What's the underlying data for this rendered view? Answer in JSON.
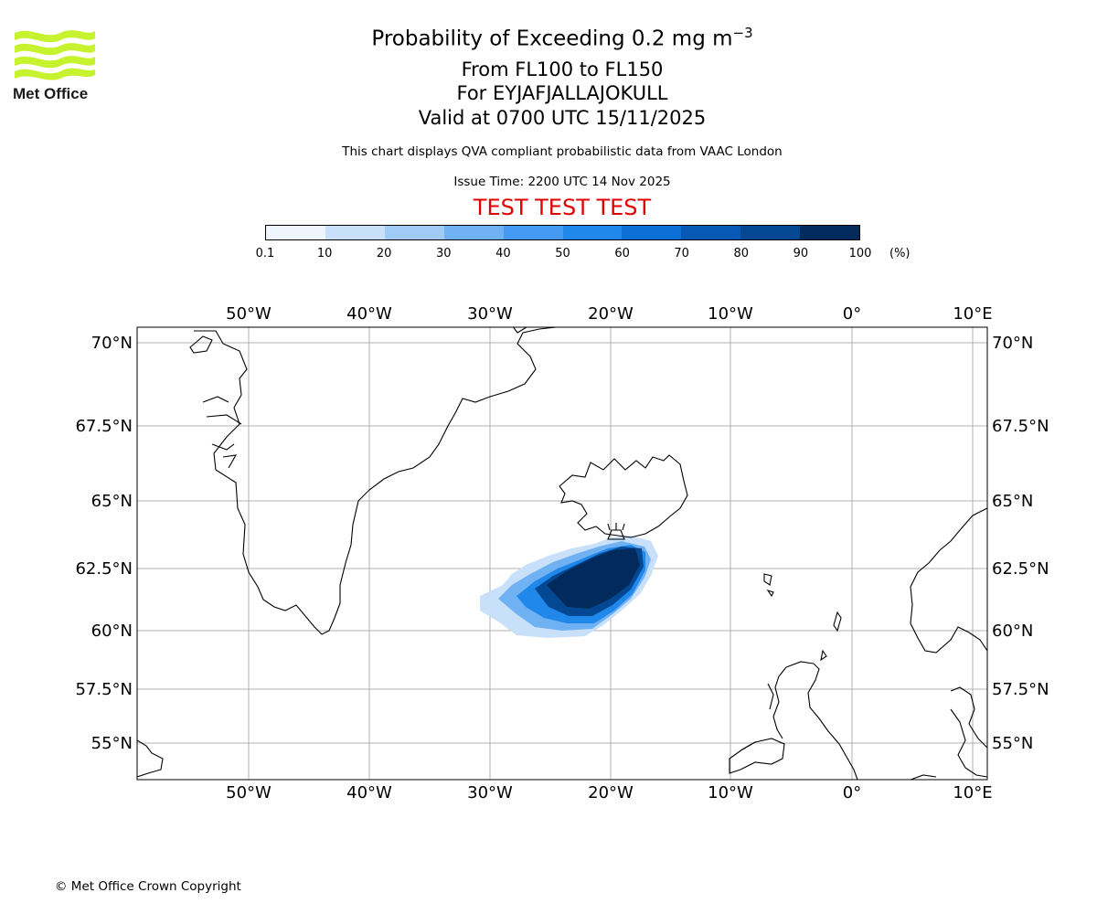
{
  "logo": {
    "text": "Met Office"
  },
  "titles": {
    "line1_prefix": "Probability of Exceeding 0.2 mg m",
    "line1_sup": "−3",
    "line2": "From FL100 to FL150",
    "line3": "For EYJAFJALLAJOKULL",
    "line4": "Valid at 0700 UTC 15/11/2025"
  },
  "subtitle": "This chart displays QVA compliant probabilistic data from VAAC London",
  "issue_time": "Issue Time: 2200 UTC 14 Nov 2025",
  "test_banner": "TEST TEST TEST",
  "colorbar": {
    "ticks": [
      "0.1",
      "10",
      "20",
      "30",
      "40",
      "50",
      "60",
      "70",
      "80",
      "90",
      "100"
    ],
    "unit": "(%)",
    "colors": [
      "#eef5fd",
      "#c8e0f9",
      "#a0cbf7",
      "#70b1f4",
      "#4499f0",
      "#2088ea",
      "#0b6fd6",
      "#0759b5",
      "#044894",
      "#022a5c"
    ]
  },
  "map": {
    "lon_labels": [
      "50°W",
      "40°W",
      "30°W",
      "20°W",
      "10°W",
      "0°",
      "10°E"
    ],
    "lat_labels": [
      "70°N",
      "67.5°N",
      "65°N",
      "62.5°N",
      "60°N",
      "57.5°N",
      "55°N"
    ],
    "volcano": "EYJAFJALLAJOKULL",
    "grid": true
  },
  "copyright": "© Met Office Crown Copyright"
}
